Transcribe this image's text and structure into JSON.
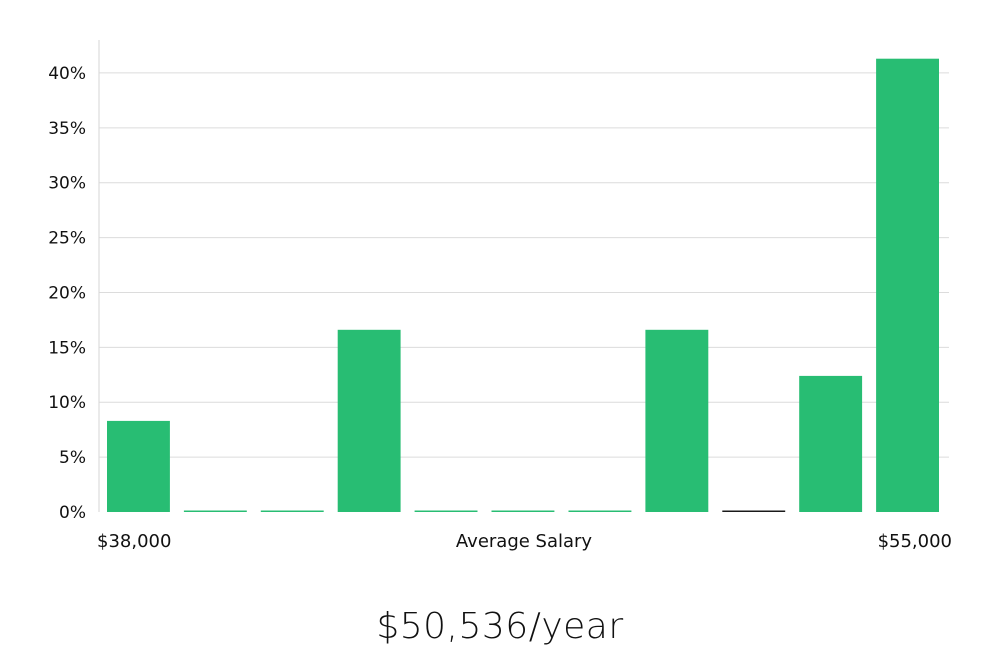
{
  "chart_data": {
    "type": "bar",
    "xlabel": "Average Salary",
    "x_range_labels": {
      "min": "$38,000",
      "max": "$55,000"
    },
    "ylim": [
      0,
      43
    ],
    "y_ticks": [
      0,
      5,
      10,
      15,
      20,
      25,
      30,
      35,
      40
    ],
    "y_tick_labels": [
      "0%",
      "5%",
      "10%",
      "15%",
      "20%",
      "25%",
      "30%",
      "35%",
      "40%"
    ],
    "bin_count": 11,
    "values": [
      8.3,
      0,
      0,
      16.6,
      0,
      0,
      0,
      16.6,
      0,
      12.4,
      41.3
    ],
    "grid": true,
    "colors": {
      "bar": "#28bd73",
      "highlight_bar": "#1a1a1a",
      "grid": "#dcdcdc"
    },
    "highlight_index": 8
  },
  "headline": "$50,536/year"
}
